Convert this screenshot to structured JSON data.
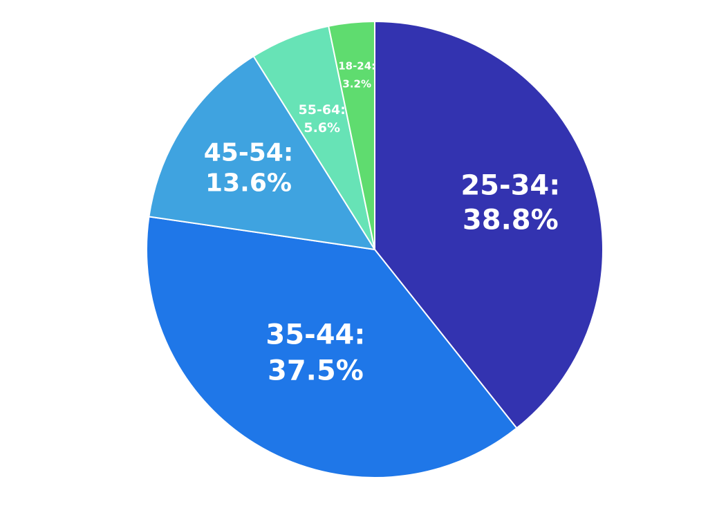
{
  "chart_data": {
    "type": "pie",
    "title": "",
    "start_angle_deg": 0,
    "direction": "clockwise",
    "slices": [
      {
        "label": "25-34:",
        "value_text": "38.8%",
        "value": 38.8,
        "color": "#3333b0"
      },
      {
        "label": "35-44:",
        "value_text": "37.5%",
        "value": 37.5,
        "color": "#1f77e8"
      },
      {
        "label": "45-54:",
        "value_text": "13.6%",
        "value": 13.6,
        "color": "#3fa3e0"
      },
      {
        "label": "55-64:",
        "value_text": "5.6%",
        "value": 5.6,
        "color": "#67e3b6"
      },
      {
        "label": "18-24:",
        "value_text": "3.2%",
        "value": 3.2,
        "color": "#5fdc6f"
      }
    ]
  }
}
